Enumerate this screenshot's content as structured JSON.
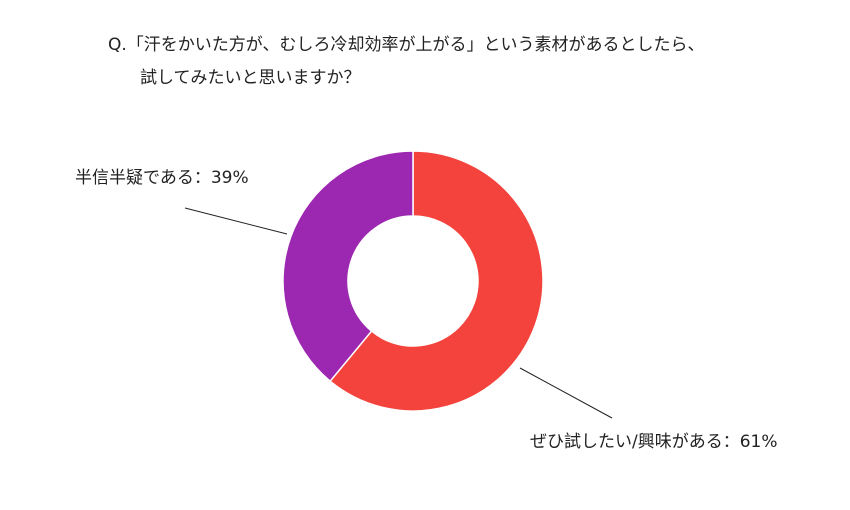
{
  "chart_data": {
    "type": "donut",
    "title": [
      "Q.「汗をかいた方が、むしろ冷却効率が上がる」という素材があるとしたら、",
      "試してみたいと思いますか？"
    ],
    "values": [
      61,
      39
    ],
    "value_labels": [
      "ぜひ試したい/興味がある：61%",
      "半信半疑である：39%"
    ],
    "colors": [
      "#f4423c",
      "#9c27b0"
    ]
  }
}
